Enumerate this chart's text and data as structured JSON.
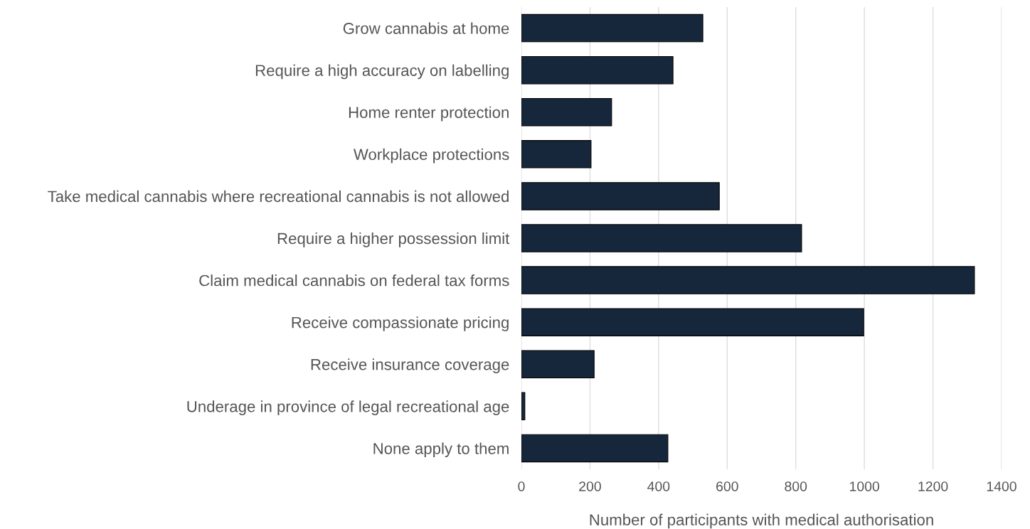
{
  "chart_data": {
    "type": "bar",
    "orientation": "horizontal",
    "xlabel": "Number of participants with medical authorisation",
    "categories": [
      "Grow cannabis at home",
      "Require a high accuracy on labelling",
      "Home renter protection",
      "Workplace protections",
      "Take medical cannabis where recreational cannabis is not allowed",
      "Require a higher possession limit",
      "Claim medical cannabis on federal tax forms",
      "Receive compassionate pricing",
      "Receive insurance coverage",
      "Underage in province of legal recreational age",
      "None apply to them"
    ],
    "values": [
      529,
      442,
      263,
      203,
      577,
      817,
      1321,
      998,
      212,
      10,
      427
    ],
    "color": "#16263b",
    "xlim": [
      0,
      1400
    ],
    "xticks": [
      0,
      200,
      400,
      600,
      800,
      1000,
      1200,
      1400
    ],
    "grid": "x"
  }
}
